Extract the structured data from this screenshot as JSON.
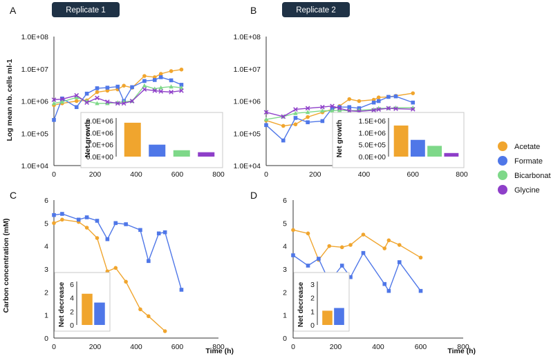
{
  "colors": {
    "acetate": "#F0A52E",
    "formate": "#4F77E8",
    "bicarbonate": "#7ED889",
    "glycine": "#8E3FC9",
    "badge": "#1F3246"
  },
  "panels": {
    "A": {
      "letter": "A",
      "badge": "Replicate 1"
    },
    "B": {
      "letter": "B",
      "badge": "Replicate 2"
    },
    "C": {
      "letter": "C"
    },
    "D": {
      "letter": "D"
    }
  },
  "labels": {
    "growth_ylabel": "Log mean nb. cells ml-1",
    "carbon_ylabel": "Carbon concentration (mM)",
    "time_xlabel": "Time (h)",
    "net_growth": "Net growth",
    "net_decrease": "Net decrease"
  },
  "legend": [
    {
      "name": "Acetate",
      "color": "#F0A52E"
    },
    {
      "name": "Formate",
      "color": "#4F77E8"
    },
    {
      "name": "Bicarbonate",
      "color": "#7ED889"
    },
    {
      "name": "Glycine",
      "color": "#8E3FC9"
    }
  ],
  "chart_data": [
    {
      "id": "A",
      "type": "line",
      "title": "Replicate 1",
      "ylabel": "Log mean nb. cells ml-1",
      "xlabel": "",
      "yscale": "log",
      "ylim": [
        10000,
        100000000
      ],
      "xlim": [
        0,
        800
      ],
      "xticks": [
        "0",
        "200",
        "400",
        "600",
        "800"
      ],
      "yticks": [
        "1.0E+04",
        "1.0E+05",
        "1.0E+06",
        "1.0E+07",
        "1.0E+08"
      ],
      "series": [
        {
          "name": "Acetate",
          "marker": "circle",
          "x": [
            0,
            40,
            110,
            160,
            210,
            260,
            310,
            340,
            380,
            440,
            490,
            520,
            570,
            620
          ],
          "y": [
            750000,
            850000,
            1000000,
            1050000,
            1900000,
            2100000,
            2300000,
            3000000,
            2600000,
            6000000,
            5500000,
            7000000,
            8500000,
            9500000
          ]
        },
        {
          "name": "Formate",
          "marker": "square",
          "x": [
            0,
            40,
            110,
            160,
            210,
            260,
            310,
            340,
            380,
            440,
            490,
            520,
            570,
            620
          ],
          "y": [
            260000,
            1200000,
            650000,
            1700000,
            2500000,
            2600000,
            2800000,
            1000000,
            2700000,
            4200000,
            4500000,
            5500000,
            4400000,
            3200000
          ]
        },
        {
          "name": "Bicarbonate",
          "marker": "triangle",
          "x": [
            0,
            40,
            110,
            160,
            210,
            260,
            310,
            340,
            380,
            440,
            490,
            520,
            570,
            620
          ],
          "y": [
            850000,
            950000,
            1300000,
            1000000,
            850000,
            850000,
            900000,
            950000,
            1000000,
            3000000,
            2400000,
            2600000,
            2800000,
            2600000
          ]
        },
        {
          "name": "Glycine",
          "marker": "x",
          "x": [
            0,
            40,
            110,
            160,
            210,
            260,
            310,
            340,
            380,
            440,
            490,
            520,
            570,
            620
          ],
          "y": [
            1100000,
            1150000,
            1500000,
            900000,
            1250000,
            950000,
            850000,
            850000,
            1000000,
            2300000,
            2100000,
            2000000,
            1900000,
            2100000
          ]
        }
      ],
      "inset": {
        "ylabel": "Net growth",
        "categories": [
          "Acetate",
          "Formate",
          "Bicarbonate",
          "Glycine"
        ],
        "values": [
          8500000,
          3000000,
          1600000,
          1100000
        ],
        "ylim": [
          0,
          9000000
        ],
        "yticks": [
          "0.0E+00",
          "3.0E+06",
          "6.0E+06",
          "9.0E+06"
        ]
      }
    },
    {
      "id": "B",
      "type": "line",
      "title": "Replicate 2",
      "ylabel": "",
      "xlabel": "",
      "yscale": "log",
      "ylim": [
        10000,
        100000000
      ],
      "xlim": [
        0,
        800
      ],
      "xticks": [
        "0",
        "200",
        "400",
        "600",
        "800"
      ],
      "yticks": [
        "1.0E+04",
        "1.0E+05",
        "1.0E+06",
        "1.0E+07",
        "1.0E+08"
      ],
      "series": [
        {
          "name": "Acetate",
          "marker": "circle",
          "x": [
            0,
            70,
            120,
            170,
            230,
            270,
            300,
            340,
            380,
            440,
            460,
            500,
            530,
            600
          ],
          "y": [
            250000,
            170000,
            190000,
            320000,
            450000,
            550000,
            700000,
            1150000,
            1000000,
            1100000,
            1300000,
            1350000,
            1450000,
            1750000
          ]
        },
        {
          "name": "Formate",
          "marker": "square",
          "x": [
            0,
            70,
            120,
            170,
            230,
            270,
            300,
            340,
            380,
            440,
            460,
            500,
            530,
            600
          ],
          "y": [
            180000,
            60000,
            300000,
            220000,
            240000,
            600000,
            650000,
            650000,
            600000,
            900000,
            1000000,
            1350000,
            1400000,
            900000
          ]
        },
        {
          "name": "Bicarbonate",
          "marker": "triangle",
          "x": [
            0,
            70,
            120,
            170,
            230,
            270,
            300,
            340,
            380,
            440,
            460,
            500,
            530,
            600
          ],
          "y": [
            270000,
            330000,
            420000,
            450000,
            500000,
            500000,
            520000,
            500000,
            520000,
            550000,
            600000,
            600000,
            620000,
            620000
          ]
        },
        {
          "name": "Glycine",
          "marker": "x",
          "x": [
            0,
            70,
            120,
            170,
            230,
            270,
            300,
            340,
            380,
            440,
            460,
            500,
            530,
            600
          ],
          "y": [
            450000,
            330000,
            550000,
            600000,
            650000,
            700000,
            600000,
            500000,
            480000,
            520000,
            550000,
            600000,
            580000,
            560000
          ]
        }
      ],
      "inset": {
        "ylabel": "Net growth",
        "categories": [
          "Acetate",
          "Formate",
          "Bicarbonate",
          "Glycine"
        ],
        "values": [
          1300000,
          700000,
          450000,
          150000
        ],
        "ylim": [
          0,
          1500000
        ],
        "yticks": [
          "0.0E+00",
          "5.0E+05",
          "1.0E+06",
          "1.5E+06"
        ]
      }
    },
    {
      "id": "C",
      "type": "line",
      "title": "",
      "ylabel": "Carbon concentration (mM)",
      "xlabel": "Time (h)",
      "yscale": "linear",
      "ylim": [
        0,
        6
      ],
      "xlim": [
        0,
        800
      ],
      "xticks": [
        "0",
        "200",
        "400",
        "600",
        "800"
      ],
      "yticks": [
        "0",
        "1",
        "2",
        "3",
        "4",
        "5",
        "6"
      ],
      "series": [
        {
          "name": "Acetate",
          "marker": "circle",
          "x": [
            0,
            40,
            120,
            160,
            210,
            260,
            300,
            350,
            420,
            460,
            540
          ],
          "y": [
            5.0,
            5.15,
            5.05,
            4.8,
            4.35,
            2.9,
            3.05,
            2.45,
            1.25,
            0.95,
            0.3
          ]
        },
        {
          "name": "Formate",
          "marker": "square",
          "x": [
            0,
            40,
            120,
            160,
            210,
            260,
            300,
            350,
            420,
            460,
            510,
            540,
            620
          ],
          "y": [
            5.35,
            5.4,
            5.15,
            5.25,
            5.1,
            4.3,
            5.0,
            4.95,
            4.7,
            3.35,
            4.55,
            4.6,
            2.1
          ]
        }
      ],
      "inset": {
        "ylabel": "Net decrease",
        "categories": [
          "Acetate",
          "Formate"
        ],
        "values": [
          4.6,
          3.3
        ],
        "ylim": [
          0,
          6
        ],
        "yticks": [
          "0",
          "2",
          "4",
          "6"
        ]
      }
    },
    {
      "id": "D",
      "type": "line",
      "title": "",
      "ylabel": "",
      "xlabel": "Time (h)",
      "yscale": "linear",
      "ylim": [
        0,
        6
      ],
      "xlim": [
        0,
        800
      ],
      "xticks": [
        "0",
        "200",
        "400",
        "600",
        "800"
      ],
      "yticks": [
        "0",
        "1",
        "2",
        "3",
        "4",
        "5",
        "6"
      ],
      "series": [
        {
          "name": "Acetate",
          "marker": "circle",
          "x": [
            0,
            70,
            120,
            170,
            230,
            270,
            330,
            430,
            450,
            500,
            600
          ],
          "y": [
            4.7,
            4.55,
            3.4,
            4.0,
            3.95,
            4.05,
            4.5,
            3.9,
            4.25,
            4.05,
            3.5
          ]
        },
        {
          "name": "Formate",
          "marker": "square",
          "x": [
            0,
            70,
            120,
            170,
            230,
            270,
            330,
            430,
            450,
            500,
            600
          ],
          "y": [
            3.6,
            3.15,
            3.45,
            2.45,
            3.15,
            2.65,
            3.7,
            2.35,
            2.05,
            3.3,
            2.05
          ]
        }
      ],
      "inset": {
        "ylabel": "Net decrease",
        "categories": [
          "Acetate",
          "Formate"
        ],
        "values": [
          1.05,
          1.25
        ],
        "ylim": [
          0,
          3
        ],
        "yticks": [
          "0",
          "1",
          "2",
          "3"
        ]
      }
    }
  ]
}
